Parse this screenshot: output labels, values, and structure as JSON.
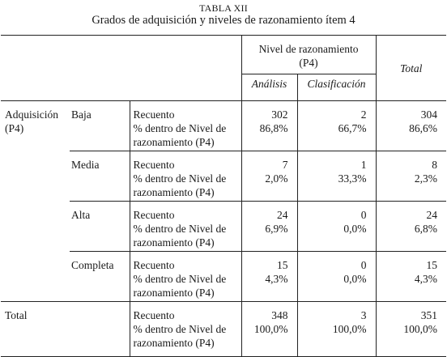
{
  "caption": {
    "number": "TABLA XII",
    "title": "Grados de adquisición y niveles de razonamiento ítem 4"
  },
  "header": {
    "group": "Nivel de razonamiento",
    "group_sub": "(P4)",
    "col1": "Análisis",
    "col2": "Clasificación",
    "total": "Total"
  },
  "measures": {
    "line1": "Recuento",
    "line2": "% dentro de Nivel de",
    "line3": "razonamiento (P4)"
  },
  "row_group": {
    "label_line1": "Adquisición",
    "label_line2": "(P4)"
  },
  "rows": [
    {
      "level": "Baja",
      "analisis": [
        "302",
        "86,8%"
      ],
      "clasificacion": [
        "2",
        "66,7%"
      ],
      "total": [
        "304",
        "86,6%"
      ]
    },
    {
      "level": "Media",
      "analisis": [
        "7",
        "2,0%"
      ],
      "clasificacion": [
        "1",
        "33,3%"
      ],
      "total": [
        "8",
        "2,3%"
      ]
    },
    {
      "level": "Alta",
      "analisis": [
        "24",
        "6,9%"
      ],
      "clasificacion": [
        "0",
        "0,0%"
      ],
      "total": [
        "24",
        "6,8%"
      ]
    },
    {
      "level": "Completa",
      "analisis": [
        "15",
        "4,3%"
      ],
      "clasificacion": [
        "0",
        "0,0%"
      ],
      "total": [
        "15",
        "4,3%"
      ]
    }
  ],
  "total_row": {
    "label": "Total",
    "analisis": [
      "348",
      "100,0%"
    ],
    "clasificacion": [
      "3",
      "100,0%"
    ],
    "total": [
      "351",
      "100,0%"
    ]
  }
}
